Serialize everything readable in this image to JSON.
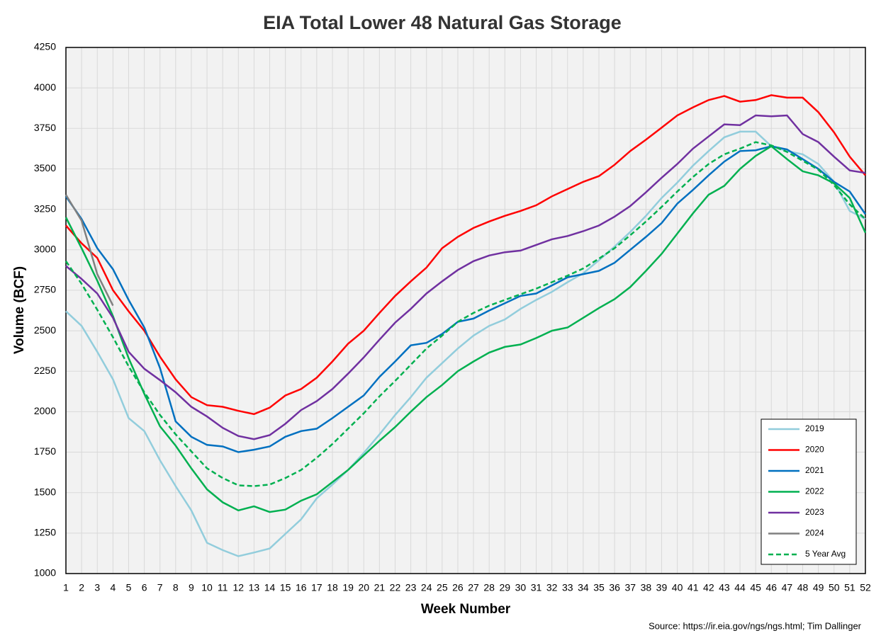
{
  "chart_data": {
    "type": "line",
    "title": "EIA Total Lower 48 Natural Gas Storage",
    "xlabel": "Week Number",
    "ylabel": "Volume (BCF)",
    "source": "Source: https://ir.eia.gov/ngs/ngs.html; Tim Dallinger",
    "x": [
      1,
      2,
      3,
      4,
      5,
      6,
      7,
      8,
      9,
      10,
      11,
      12,
      13,
      14,
      15,
      16,
      17,
      18,
      19,
      20,
      21,
      22,
      23,
      24,
      25,
      26,
      27,
      28,
      29,
      30,
      31,
      32,
      33,
      34,
      35,
      36,
      37,
      38,
      39,
      40,
      41,
      42,
      43,
      44,
      45,
      46,
      47,
      48,
      49,
      50,
      51,
      52
    ],
    "xlim": [
      1,
      52
    ],
    "ylim": [
      1000,
      4250
    ],
    "yticks": [
      1000,
      1250,
      1500,
      1750,
      2000,
      2250,
      2500,
      2750,
      3000,
      3250,
      3500,
      3750,
      4000,
      4250
    ],
    "grid": true,
    "legend": "lower right",
    "series": [
      {
        "name": "2019",
        "color": "#92cddc",
        "values": [
          2620,
          2530,
          2370,
          2200,
          1960,
          1880,
          1700,
          1540,
          1390,
          1190,
          1145,
          1107,
          1130,
          1155,
          1245,
          1335,
          1465,
          1550,
          1640,
          1745,
          1860,
          1980,
          2090,
          2210,
          2300,
          2390,
          2470,
          2530,
          2570,
          2635,
          2690,
          2740,
          2800,
          2855,
          2935,
          3020,
          3110,
          3210,
          3320,
          3415,
          3520,
          3610,
          3695,
          3730,
          3730,
          3640,
          3610,
          3590,
          3530,
          3420,
          3240,
          3190
        ]
      },
      {
        "name": "2020",
        "color": "#ff0000",
        "values": [
          3150,
          3040,
          2950,
          2750,
          2620,
          2500,
          2340,
          2200,
          2090,
          2040,
          2030,
          2005,
          1985,
          2025,
          2100,
          2140,
          2210,
          2310,
          2420,
          2500,
          2610,
          2715,
          2805,
          2890,
          3010,
          3080,
          3135,
          3175,
          3210,
          3240,
          3275,
          3330,
          3375,
          3420,
          3455,
          3525,
          3610,
          3680,
          3755,
          3830,
          3880,
          3925,
          3950,
          3915,
          3925,
          3955,
          3940,
          3940,
          3850,
          3725,
          3575,
          3460
        ]
      },
      {
        "name": "2021",
        "color": "#0070c0",
        "values": [
          3330,
          3190,
          3010,
          2880,
          2690,
          2520,
          2270,
          1940,
          1845,
          1795,
          1785,
          1750,
          1765,
          1785,
          1845,
          1880,
          1895,
          1960,
          2030,
          2100,
          2215,
          2310,
          2410,
          2425,
          2480,
          2555,
          2575,
          2625,
          2670,
          2715,
          2730,
          2780,
          2830,
          2850,
          2870,
          2920,
          3000,
          3080,
          3165,
          3285,
          3370,
          3460,
          3545,
          3610,
          3615,
          3640,
          3620,
          3560,
          3500,
          3420,
          3360,
          3220
        ]
      },
      {
        "name": "2022",
        "color": "#00b050",
        "values": [
          3200,
          3010,
          2810,
          2590,
          2330,
          2110,
          1910,
          1790,
          1650,
          1520,
          1440,
          1390,
          1415,
          1380,
          1395,
          1450,
          1490,
          1565,
          1640,
          1730,
          1820,
          1905,
          2000,
          2090,
          2165,
          2250,
          2310,
          2365,
          2400,
          2415,
          2455,
          2500,
          2520,
          2580,
          2640,
          2695,
          2770,
          2870,
          2975,
          3100,
          3225,
          3340,
          3395,
          3500,
          3580,
          3640,
          3560,
          3485,
          3460,
          3410,
          3320,
          3105
        ]
      },
      {
        "name": "2023",
        "color": "#7030a0",
        "values": [
          2900,
          2820,
          2730,
          2580,
          2370,
          2265,
          2195,
          2120,
          2030,
          1970,
          1900,
          1850,
          1830,
          1855,
          1925,
          2010,
          2065,
          2140,
          2235,
          2335,
          2445,
          2550,
          2635,
          2730,
          2805,
          2875,
          2930,
          2965,
          2985,
          2995,
          3030,
          3065,
          3085,
          3115,
          3150,
          3205,
          3270,
          3355,
          3445,
          3530,
          3625,
          3700,
          3775,
          3770,
          3830,
          3825,
          3830,
          3715,
          3665,
          3575,
          3490,
          3475
        ]
      },
      {
        "name": "2024",
        "color": "#808080",
        "values": [
          3340,
          3180,
          2850,
          2655,
          null,
          null,
          null,
          null,
          null,
          null,
          null,
          null,
          null,
          null,
          null,
          null,
          null,
          null,
          null,
          null,
          null,
          null,
          null,
          null,
          null,
          null,
          null,
          null,
          null,
          null,
          null,
          null,
          null,
          null,
          null,
          null,
          null,
          null,
          null,
          null,
          null,
          null,
          null,
          null,
          null,
          null,
          null,
          null,
          null,
          null,
          null,
          null
        ]
      },
      {
        "name": "5 Year Avg",
        "color": "#00b050",
        "dashed": true,
        "values": [
          2930,
          2790,
          2630,
          2460,
          2280,
          2120,
          1980,
          1860,
          1755,
          1650,
          1590,
          1545,
          1540,
          1550,
          1590,
          1640,
          1715,
          1800,
          1895,
          1990,
          2095,
          2190,
          2290,
          2390,
          2470,
          2555,
          2610,
          2655,
          2690,
          2725,
          2760,
          2800,
          2840,
          2885,
          2945,
          3010,
          3090,
          3175,
          3265,
          3360,
          3450,
          3530,
          3590,
          3625,
          3665,
          3645,
          3605,
          3550,
          3495,
          3400,
          3280,
          3190
        ]
      }
    ]
  }
}
